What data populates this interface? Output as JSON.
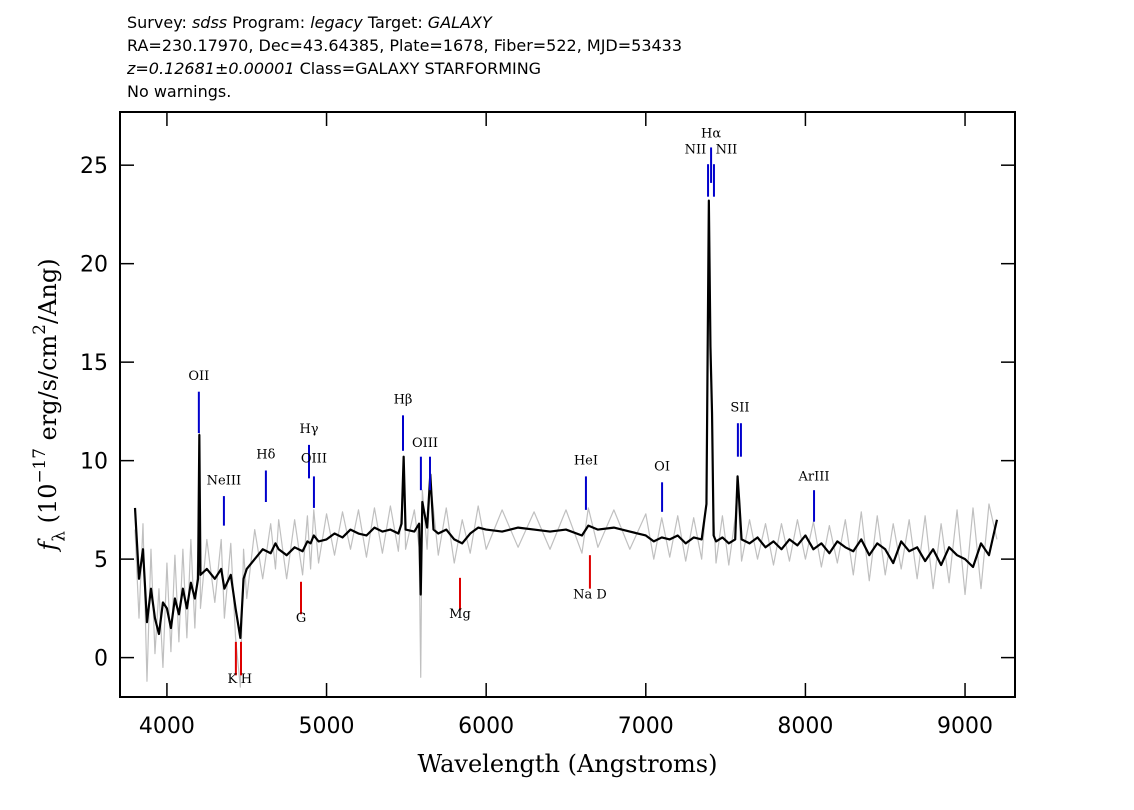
{
  "chart_data": {
    "type": "line",
    "header": [
      [
        {
          "text": "Survey: "
        },
        {
          "text": "sdss",
          "style": "italic"
        },
        {
          "text": " Program: "
        },
        {
          "text": "legacy",
          "style": "italic"
        },
        {
          "text": " Target: "
        },
        {
          "text": "GALAXY",
          "style": "italic"
        }
      ],
      [
        {
          "text": "RA=230.17970, Dec=43.64385, Plate=1678, Fiber=522, MJD=53433"
        }
      ],
      [
        {
          "text": "z=0.12681±0.00001",
          "style": "italic"
        },
        {
          "text": " Class=GALAXY STARFORMING"
        }
      ],
      [
        {
          "text": "No warnings."
        }
      ]
    ],
    "x_label": "Wavelength (Angstroms)",
    "y_label": [
      {
        "text": "f",
        "style": "italic"
      },
      {
        "text": "λ",
        "style": "sub"
      },
      {
        "text": " (10"
      },
      {
        "text": "−17",
        "style": "sup"
      },
      {
        "text": " erg/s/cm"
      },
      {
        "text": "2",
        "style": "sup"
      },
      {
        "text": "/Ang)"
      }
    ],
    "xlim": [
      3706,
      9313
    ],
    "ylim": [
      -2.0,
      27.7
    ],
    "xticks": [
      4000,
      5000,
      6000,
      7000,
      8000,
      9000
    ],
    "yticks": [
      0,
      5,
      10,
      15,
      20,
      25
    ],
    "x": [
      3800,
      3825,
      3850,
      3875,
      3900,
      3925,
      3950,
      3975,
      4000,
      4025,
      4050,
      4075,
      4100,
      4125,
      4150,
      4175,
      4195,
      4203,
      4210,
      4250,
      4300,
      4340,
      4360,
      4400,
      4430,
      4460,
      4480,
      4500,
      4550,
      4600,
      4650,
      4680,
      4700,
      4750,
      4800,
      4850,
      4880,
      4900,
      4920,
      4950,
      5000,
      5050,
      5100,
      5150,
      5200,
      5250,
      5300,
      5350,
      5400,
      5450,
      5470,
      5483,
      5495,
      5550,
      5580,
      5590,
      5600,
      5630,
      5650,
      5670,
      5700,
      5750,
      5800,
      5850,
      5900,
      5950,
      6000,
      6100,
      6200,
      6300,
      6400,
      6500,
      6600,
      6640,
      6700,
      6800,
      6900,
      7000,
      7050,
      7100,
      7150,
      7200,
      7250,
      7300,
      7350,
      7380,
      7395,
      7405,
      7415,
      7425,
      7440,
      7480,
      7520,
      7560,
      7575,
      7585,
      7600,
      7650,
      7700,
      7750,
      7800,
      7850,
      7900,
      7950,
      8000,
      8050,
      8100,
      8150,
      8200,
      8250,
      8300,
      8350,
      8400,
      8450,
      8500,
      8550,
      8600,
      8650,
      8700,
      8750,
      8800,
      8850,
      8900,
      8950,
      9000,
      9050,
      9100,
      9150,
      9200
    ],
    "series": [
      {
        "color": "#c0c0c0",
        "values": [
          6.5,
          2.0,
          6.8,
          -1.2,
          5.5,
          0.2,
          3.5,
          -0.5,
          4.8,
          0.3,
          5.2,
          0.8,
          5.5,
          1.0,
          6.0,
          1.5,
          5.5,
          11.5,
          2.5,
          6.0,
          2.8,
          6.0,
          2.0,
          5.8,
          1.0,
          -1.5,
          5.5,
          3.0,
          6.5,
          4.0,
          6.8,
          4.5,
          7.0,
          4.0,
          7.0,
          4.2,
          7.2,
          4.5,
          7.5,
          4.8,
          7.3,
          5.2,
          7.4,
          5.5,
          7.5,
          5.1,
          7.6,
          5.3,
          7.7,
          5.4,
          7.5,
          10.0,
          5.5,
          7.5,
          5.6,
          -1.0,
          8.5,
          5.5,
          9.0,
          7.5,
          5.2,
          7.6,
          4.8,
          7.0,
          5.3,
          7.7,
          5.5,
          7.5,
          5.6,
          7.4,
          5.5,
          7.5,
          5.3,
          7.6,
          5.6,
          7.5,
          5.5,
          7.3,
          5.0,
          7.1,
          5.1,
          7.2,
          4.9,
          7.1,
          5.0,
          8.0,
          23.0,
          15.5,
          12.0,
          7.2,
          4.8,
          7.2,
          4.7,
          7.1,
          9.0,
          7.2,
          4.9,
          7.0,
          5.0,
          6.8,
          4.7,
          6.8,
          4.9,
          7.0,
          5.0,
          6.9,
          4.6,
          6.7,
          4.8,
          7.0,
          4.2,
          7.4,
          3.9,
          7.2,
          4.2,
          6.8,
          4.5,
          7.0,
          4.0,
          7.2,
          3.5,
          6.8,
          3.8,
          7.5,
          3.2,
          7.6,
          3.5,
          7.8,
          6.0
        ]
      },
      {
        "color": "#000000",
        "values": [
          7.6,
          4.0,
          5.5,
          1.8,
          3.5,
          2.0,
          1.2,
          2.8,
          2.5,
          1.5,
          3.0,
          2.2,
          3.5,
          2.5,
          3.8,
          3.0,
          4.0,
          11.3,
          4.2,
          4.5,
          4.0,
          4.5,
          3.5,
          4.2,
          2.5,
          1.0,
          4.0,
          4.5,
          5.0,
          5.5,
          5.3,
          5.8,
          5.5,
          5.2,
          5.6,
          5.4,
          5.9,
          5.8,
          6.2,
          5.9,
          6.0,
          6.3,
          6.1,
          6.5,
          6.3,
          6.2,
          6.6,
          6.4,
          6.5,
          6.3,
          6.8,
          10.2,
          6.5,
          6.4,
          6.8,
          3.2,
          7.9,
          6.6,
          9.3,
          6.5,
          6.3,
          6.5,
          6.0,
          5.8,
          6.3,
          6.6,
          6.5,
          6.4,
          6.6,
          6.5,
          6.4,
          6.5,
          6.2,
          6.7,
          6.5,
          6.6,
          6.4,
          6.2,
          5.9,
          6.1,
          6.0,
          6.2,
          5.8,
          6.1,
          6.0,
          7.8,
          23.2,
          15.8,
          12.4,
          6.2,
          5.9,
          6.1,
          5.8,
          6.0,
          9.2,
          8.0,
          6.0,
          5.8,
          6.1,
          5.6,
          5.9,
          5.5,
          6.0,
          5.7,
          6.2,
          5.5,
          5.8,
          5.3,
          5.9,
          5.6,
          5.4,
          6.0,
          5.2,
          5.8,
          5.5,
          4.8,
          5.9,
          5.4,
          5.6,
          4.9,
          5.5,
          4.7,
          5.6,
          5.2,
          5.0,
          4.6,
          5.8,
          5.2,
          7.0
        ]
      }
    ],
    "line_marks": [
      {
        "x": 4200,
        "y0": 11.4,
        "y1": 13.5,
        "color": "#0000cc"
      },
      {
        "x": 4357,
        "y0": 6.7,
        "y1": 8.2,
        "color": "#0000cc"
      },
      {
        "x": 4620,
        "y0": 7.9,
        "y1": 9.5,
        "color": "#0000cc"
      },
      {
        "x": 4890,
        "y0": 9.1,
        "y1": 10.8,
        "color": "#0000cc"
      },
      {
        "x": 4921,
        "y0": 7.6,
        "y1": 9.2,
        "color": "#0000cc"
      },
      {
        "x": 5479,
        "y0": 10.5,
        "y1": 12.3,
        "color": "#0000cc"
      },
      {
        "x": 5591,
        "y0": 8.5,
        "y1": 10.2,
        "color": "#0000cc"
      },
      {
        "x": 5648,
        "y0": 8.5,
        "y1": 10.2,
        "color": "#0000cc"
      },
      {
        "x": 6625,
        "y0": 7.5,
        "y1": 9.2,
        "color": "#0000cc"
      },
      {
        "x": 7102,
        "y0": 7.4,
        "y1": 8.9,
        "color": "#0000cc"
      },
      {
        "x": 7390,
        "y0": 23.4,
        "y1": 25.05,
        "color": "#0000cc"
      },
      {
        "x": 7409,
        "y0": 24.1,
        "y1": 25.9,
        "color": "#0000cc"
      },
      {
        "x": 7427,
        "y0": 23.4,
        "y1": 25.05,
        "color": "#0000cc"
      },
      {
        "x": 7577,
        "y0": 10.2,
        "y1": 11.9,
        "color": "#0000cc"
      },
      {
        "x": 7596,
        "y0": 10.2,
        "y1": 11.9,
        "color": "#0000cc"
      },
      {
        "x": 8054,
        "y0": 6.9,
        "y1": 8.5,
        "color": "#0000cc"
      },
      {
        "x": 4432,
        "y0": -0.9,
        "y1": 0.8,
        "color": "#dd0000"
      },
      {
        "x": 4464,
        "y0": -0.9,
        "y1": 0.8,
        "color": "#dd0000"
      },
      {
        "x": 4840,
        "y0": 2.2,
        "y1": 3.85,
        "color": "#dd0000"
      },
      {
        "x": 5836,
        "y0": 2.4,
        "y1": 4.05,
        "color": "#dd0000"
      },
      {
        "x": 6650,
        "y0": 3.5,
        "y1": 5.2,
        "color": "#dd0000"
      }
    ],
    "line_labels": [
      {
        "text": "OII",
        "x": 4200,
        "y": 14.1
      },
      {
        "text": "NeIII",
        "x": 4357,
        "y": 8.8
      },
      {
        "text": "Hδ",
        "x": 4620,
        "y": 10.1
      },
      {
        "text": "Hγ",
        "x": 4890,
        "y": 11.4
      },
      {
        "text": "OIII",
        "x": 4921,
        "y": 9.9
      },
      {
        "text": "Hβ",
        "x": 5479,
        "y": 12.9
      },
      {
        "text": "OIII",
        "x": 5617,
        "y": 10.7
      },
      {
        "text": "HeI",
        "x": 6625,
        "y": 9.8
      },
      {
        "text": "OI",
        "x": 7102,
        "y": 9.5
      },
      {
        "text": "NII",
        "x": 7311,
        "y": 25.6
      },
      {
        "text": "Hα",
        "x": 7409,
        "y": 26.4
      },
      {
        "text": "NII",
        "x": 7505,
        "y": 25.6
      },
      {
        "text": "SII",
        "x": 7590,
        "y": 12.5
      },
      {
        "text": "ArIII",
        "x": 8054,
        "y": 9.0
      },
      {
        "text": "K",
        "x": 4410,
        "y": -1.3
      },
      {
        "text": "H",
        "x": 4498,
        "y": -1.3
      },
      {
        "text": "G",
        "x": 4840,
        "y": 1.8
      },
      {
        "text": "Mg",
        "x": 5836,
        "y": 2.0
      },
      {
        "text": "Na D",
        "x": 6650,
        "y": 3.0
      }
    ]
  }
}
